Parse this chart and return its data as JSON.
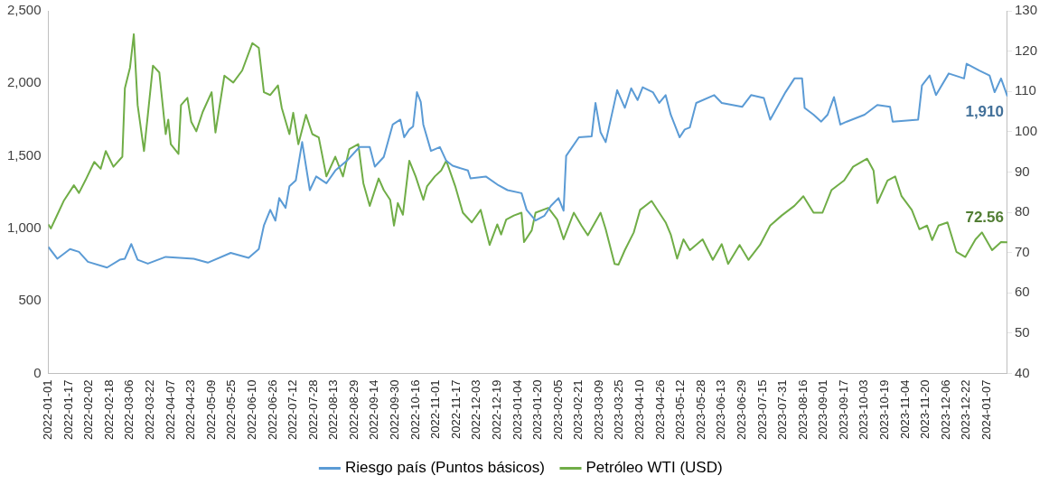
{
  "chart_data": {
    "type": "line",
    "legend": "bottom",
    "grid": false,
    "xlim": [
      "2022-01-01",
      "2024-01-23"
    ],
    "xticks": [
      "2022-01-01",
      "2022-01-17",
      "2022-02-02",
      "2022-02-18",
      "2022-03-06",
      "2022-03-22",
      "2022-04-07",
      "2022-04-23",
      "2022-05-09",
      "2022-05-25",
      "2022-06-10",
      "2022-06-26",
      "2022-07-12",
      "2022-07-28",
      "2022-08-13",
      "2022-08-29",
      "2022-09-14",
      "2022-09-30",
      "2022-10-16",
      "2022-11-01",
      "2022-11-17",
      "2022-12-03",
      "2022-12-19",
      "2023-01-04",
      "2023-01-20",
      "2023-02-05",
      "2023-02-21",
      "2023-03-09",
      "2023-03-25",
      "2023-04-10",
      "2023-04-26",
      "2023-05-12",
      "2023-05-28",
      "2023-06-13",
      "2023-06-29",
      "2023-07-15",
      "2023-07-31",
      "2023-08-16",
      "2023-09-01",
      "2023-09-17",
      "2023-10-03",
      "2023-10-19",
      "2023-11-04",
      "2023-11-20",
      "2023-12-06",
      "2023-12-22",
      "2024-01-07"
    ],
    "ylim": [
      0,
      2500
    ],
    "yticks": [
      0,
      500,
      {
        "value": 1000,
        "label": "1,000"
      },
      {
        "value": 1500,
        "label": "1,500"
      },
      {
        "value": 2000,
        "label": "2,000"
      },
      {
        "value": 2500,
        "label": "2,500"
      }
    ],
    "y2lim": [
      40,
      130
    ],
    "y2ticks": [
      40,
      50,
      60,
      70,
      80,
      90,
      100,
      110,
      120,
      130
    ],
    "series": [
      {
        "name": "Riesgo país (Puntos básicos)",
        "color": "#5b9bd5",
        "x": [
          "2022-01-01",
          "2022-01-08",
          "2022-01-18",
          "2022-01-25",
          "2022-02-01",
          "2022-02-16",
          "2022-02-26",
          "2022-03-02",
          "2022-03-07",
          "2022-03-12",
          "2022-03-20",
          "2022-04-03",
          "2022-04-25",
          "2022-05-06",
          "2022-05-24",
          "2022-06-07",
          "2022-06-15",
          "2022-06-19",
          "2022-06-24",
          "2022-06-28",
          "2022-07-01",
          "2022-07-06",
          "2022-07-09",
          "2022-07-14",
          "2022-07-19",
          "2022-07-25",
          "2022-07-30",
          "2022-08-07",
          "2022-08-14",
          "2022-08-23",
          "2022-09-02",
          "2022-09-10",
          "2022-09-14",
          "2022-09-21",
          "2022-09-28",
          "2022-10-04",
          "2022-10-07",
          "2022-10-11",
          "2022-10-14",
          "2022-10-17",
          "2022-10-20",
          "2022-10-22",
          "2022-10-28",
          "2022-11-04",
          "2022-11-09",
          "2022-11-14",
          "2022-11-26",
          "2022-11-28",
          "2022-12-10",
          "2022-12-20",
          "2022-12-27",
          "2023-01-07",
          "2023-01-11",
          "2023-01-18",
          "2023-01-25",
          "2023-01-30",
          "2023-02-05",
          "2023-02-09",
          "2023-02-11",
          "2023-02-21",
          "2023-03-03",
          "2023-03-06",
          "2023-03-10",
          "2023-03-14",
          "2023-03-21",
          "2023-03-23",
          "2023-03-29",
          "2023-04-03",
          "2023-04-08",
          "2023-04-12",
          "2023-04-20",
          "2023-04-25",
          "2023-04-30",
          "2023-05-04",
          "2023-05-11",
          "2023-05-15",
          "2023-05-19",
          "2023-05-24",
          "2023-06-07",
          "2023-06-13",
          "2023-06-29",
          "2023-07-06",
          "2023-07-16",
          "2023-07-21",
          "2023-08-02",
          "2023-08-09",
          "2023-08-15",
          "2023-08-17",
          "2023-08-24",
          "2023-08-30",
          "2023-09-04",
          "2023-09-09",
          "2023-09-14",
          "2023-09-19",
          "2023-10-03",
          "2023-10-13",
          "2023-10-23",
          "2023-10-25",
          "2023-11-14",
          "2023-11-17",
          "2023-11-23",
          "2023-11-28",
          "2023-12-08",
          "2023-12-20",
          "2023-12-22",
          "2024-01-01",
          "2024-01-09",
          "2024-01-13",
          "2024-01-18",
          "2024-01-23"
        ],
        "values": [
          872,
          791,
          858,
          838,
          770,
          730,
          784,
          791,
          892,
          784,
          757,
          804,
          791,
          764,
          831,
          797,
          858,
          1020,
          1128,
          1054,
          1209,
          1142,
          1290,
          1331,
          1595,
          1264,
          1358,
          1311,
          1399,
          1466,
          1561,
          1561,
          1426,
          1493,
          1716,
          1750,
          1628,
          1682,
          1703,
          1939,
          1872,
          1716,
          1534,
          1561,
          1466,
          1432,
          1399,
          1345,
          1358,
          1297,
          1264,
          1243,
          1128,
          1054,
          1088,
          1155,
          1209,
          1122,
          1500,
          1628,
          1635,
          1865,
          1662,
          1595,
          1872,
          1953,
          1831,
          1966,
          1885,
          1973,
          1939,
          1865,
          1919,
          1784,
          1628,
          1682,
          1696,
          1865,
          1919,
          1865,
          1838,
          1919,
          1899,
          1750,
          1939,
          2034,
          2034,
          1831,
          1784,
          1736,
          1784,
          1905,
          1716,
          1736,
          1784,
          1851,
          1838,
          1736,
          1750,
          1986,
          2054,
          1919,
          2068,
          2034,
          2135,
          2088,
          2054,
          1939,
          2034,
          1910
        ],
        "value_labels": [
          null,
          null,
          null,
          null,
          null,
          null,
          null,
          null,
          null,
          null,
          null,
          null,
          null,
          null,
          null,
          null,
          null,
          null,
          null,
          null,
          null,
          null,
          null,
          null,
          null,
          null,
          null,
          null,
          null,
          null,
          null,
          null,
          null,
          null,
          null,
          null,
          null,
          null,
          null,
          null,
          null,
          null,
          null,
          null,
          null,
          null,
          null,
          null,
          null,
          null,
          null,
          null,
          null,
          null,
          null,
          null,
          null,
          null,
          null,
          null,
          null,
          null,
          null,
          null,
          null,
          null,
          null,
          null,
          null,
          null,
          null,
          null,
          null,
          null,
          null,
          null,
          null,
          null,
          null,
          null,
          null,
          null,
          null,
          null,
          null,
          null,
          null,
          null,
          null,
          null,
          null,
          null,
          null,
          null,
          null,
          null,
          null,
          null,
          null,
          null,
          null,
          null,
          null,
          null,
          null,
          null,
          null,
          null,
          null,
          "1,910"
        ]
      },
      {
        "name": "Petróleo WTI (USD)",
        "color": "#70ad47",
        "axis": "y2",
        "x": [
          "2022-01-01",
          "2022-01-03",
          "2022-01-08",
          "2022-01-13",
          "2022-01-21",
          "2022-01-25",
          "2022-01-30",
          "2022-02-06",
          "2022-02-11",
          "2022-02-15",
          "2022-02-21",
          "2022-02-28",
          "2022-03-02",
          "2022-03-06",
          "2022-03-09",
          "2022-03-12",
          "2022-03-17",
          "2022-03-20",
          "2022-03-24",
          "2022-03-29",
          "2022-04-03",
          "2022-04-05",
          "2022-04-07",
          "2022-04-13",
          "2022-04-15",
          "2022-04-20",
          "2022-04-23",
          "2022-04-27",
          "2022-05-02",
          "2022-05-09",
          "2022-05-12",
          "2022-05-19",
          "2022-05-26",
          "2022-06-02",
          "2022-06-10",
          "2022-06-15",
          "2022-06-19",
          "2022-06-24",
          "2022-06-30",
          "2022-07-03",
          "2022-07-09",
          "2022-07-12",
          "2022-07-16",
          "2022-07-22",
          "2022-07-27",
          "2022-08-01",
          "2022-08-07",
          "2022-08-14",
          "2022-08-20",
          "2022-08-25",
          "2022-09-01",
          "2022-09-05",
          "2022-09-10",
          "2022-09-17",
          "2022-09-21",
          "2022-09-26",
          "2022-09-29",
          "2022-10-02",
          "2022-10-06",
          "2022-10-11",
          "2022-10-16",
          "2022-10-22",
          "2022-10-25",
          "2022-10-31",
          "2022-11-05",
          "2022-11-09",
          "2022-11-16",
          "2022-11-22",
          "2022-11-29",
          "2022-12-06",
          "2022-12-13",
          "2022-12-19",
          "2022-12-22",
          "2022-12-26",
          "2023-01-01",
          "2023-01-07",
          "2023-01-09",
          "2023-01-15",
          "2023-01-18",
          "2023-01-28",
          "2023-02-04",
          "2023-02-09",
          "2023-02-17",
          "2023-02-23",
          "2023-02-28",
          "2023-03-10",
          "2023-03-14",
          "2023-03-21",
          "2023-03-24",
          "2023-03-29",
          "2023-04-05",
          "2023-04-10",
          "2023-04-19",
          "2023-04-25",
          "2023-04-30",
          "2023-05-04",
          "2023-05-09",
          "2023-05-14",
          "2023-05-19",
          "2023-05-29",
          "2023-06-06",
          "2023-06-13",
          "2023-06-18",
          "2023-06-27",
          "2023-07-04",
          "2023-07-13",
          "2023-07-21",
          "2023-07-30",
          "2023-08-09",
          "2023-08-16",
          "2023-08-24",
          "2023-08-31",
          "2023-09-07",
          "2023-09-17",
          "2023-09-24",
          "2023-10-05",
          "2023-10-10",
          "2023-10-13",
          "2023-10-21",
          "2023-10-27",
          "2023-11-01",
          "2023-11-09",
          "2023-11-15",
          "2023-11-21",
          "2023-11-25",
          "2023-11-30",
          "2023-12-07",
          "2023-12-14",
          "2023-12-21",
          "2023-12-29",
          "2024-01-03",
          "2024-01-11",
          "2024-01-18",
          "2024-01-23"
        ],
        "values": [
          77.0,
          76.0,
          79.4,
          82.8,
          86.7,
          84.8,
          87.9,
          92.5,
          90.8,
          95.2,
          91.3,
          93.8,
          110.8,
          115.9,
          124.2,
          106.6,
          95.2,
          104.2,
          116.4,
          114.7,
          99.4,
          103.0,
          96.9,
          94.5,
          106.6,
          108.4,
          102.5,
          100.1,
          104.9,
          109.8,
          99.8,
          113.9,
          112.2,
          115.2,
          122.0,
          120.8,
          109.8,
          109.1,
          111.5,
          105.9,
          99.4,
          104.7,
          96.9,
          104.2,
          99.4,
          98.6,
          88.9,
          93.8,
          88.9,
          95.7,
          96.9,
          87.2,
          81.6,
          88.4,
          85.5,
          83.1,
          76.7,
          82.3,
          79.4,
          92.8,
          88.9,
          83.1,
          86.5,
          88.9,
          90.4,
          92.8,
          86.5,
          79.9,
          77.5,
          80.6,
          71.9,
          77.0,
          74.5,
          78.2,
          79.2,
          79.9,
          72.6,
          75.5,
          79.9,
          81.1,
          78.2,
          73.3,
          79.9,
          76.7,
          74.3,
          79.9,
          75.8,
          67.2,
          67.0,
          70.6,
          75.0,
          80.6,
          82.8,
          79.9,
          77.5,
          74.5,
          68.5,
          73.3,
          70.6,
          73.3,
          68.2,
          72.1,
          67.2,
          71.9,
          68.2,
          71.9,
          76.7,
          79.2,
          81.6,
          84.0,
          79.9,
          79.9,
          85.5,
          87.9,
          91.3,
          93.3,
          90.4,
          82.3,
          87.9,
          88.9,
          84.0,
          80.6,
          75.8,
          76.7,
          73.1,
          76.7,
          77.5,
          70.2,
          68.9,
          73.3,
          75.0,
          70.6,
          72.6,
          72.56
        ],
        "value_labels": [
          null,
          null,
          null,
          null,
          null,
          null,
          null,
          null,
          null,
          null,
          null,
          null,
          null,
          null,
          null,
          null,
          null,
          null,
          null,
          null,
          null,
          null,
          null,
          null,
          null,
          null,
          null,
          null,
          null,
          null,
          null,
          null,
          null,
          null,
          null,
          null,
          null,
          null,
          null,
          null,
          null,
          null,
          null,
          null,
          null,
          null,
          null,
          null,
          null,
          null,
          null,
          null,
          null,
          null,
          null,
          null,
          null,
          null,
          null,
          null,
          null,
          null,
          null,
          null,
          null,
          null,
          null,
          null,
          null,
          null,
          null,
          null,
          null,
          null,
          null,
          null,
          null,
          null,
          null,
          null,
          null,
          null,
          null,
          null,
          null,
          null,
          null,
          null,
          null,
          null,
          null,
          null,
          null,
          null,
          null,
          null,
          null,
          null,
          null,
          null,
          null,
          null,
          null,
          null,
          null,
          null,
          null,
          null,
          null,
          null,
          null,
          null,
          null,
          null,
          null,
          null,
          null,
          null,
          null,
          null,
          null,
          null,
          null,
          null,
          null,
          null,
          null,
          null,
          null,
          null,
          null,
          null,
          null,
          "72.56"
        ]
      }
    ]
  }
}
